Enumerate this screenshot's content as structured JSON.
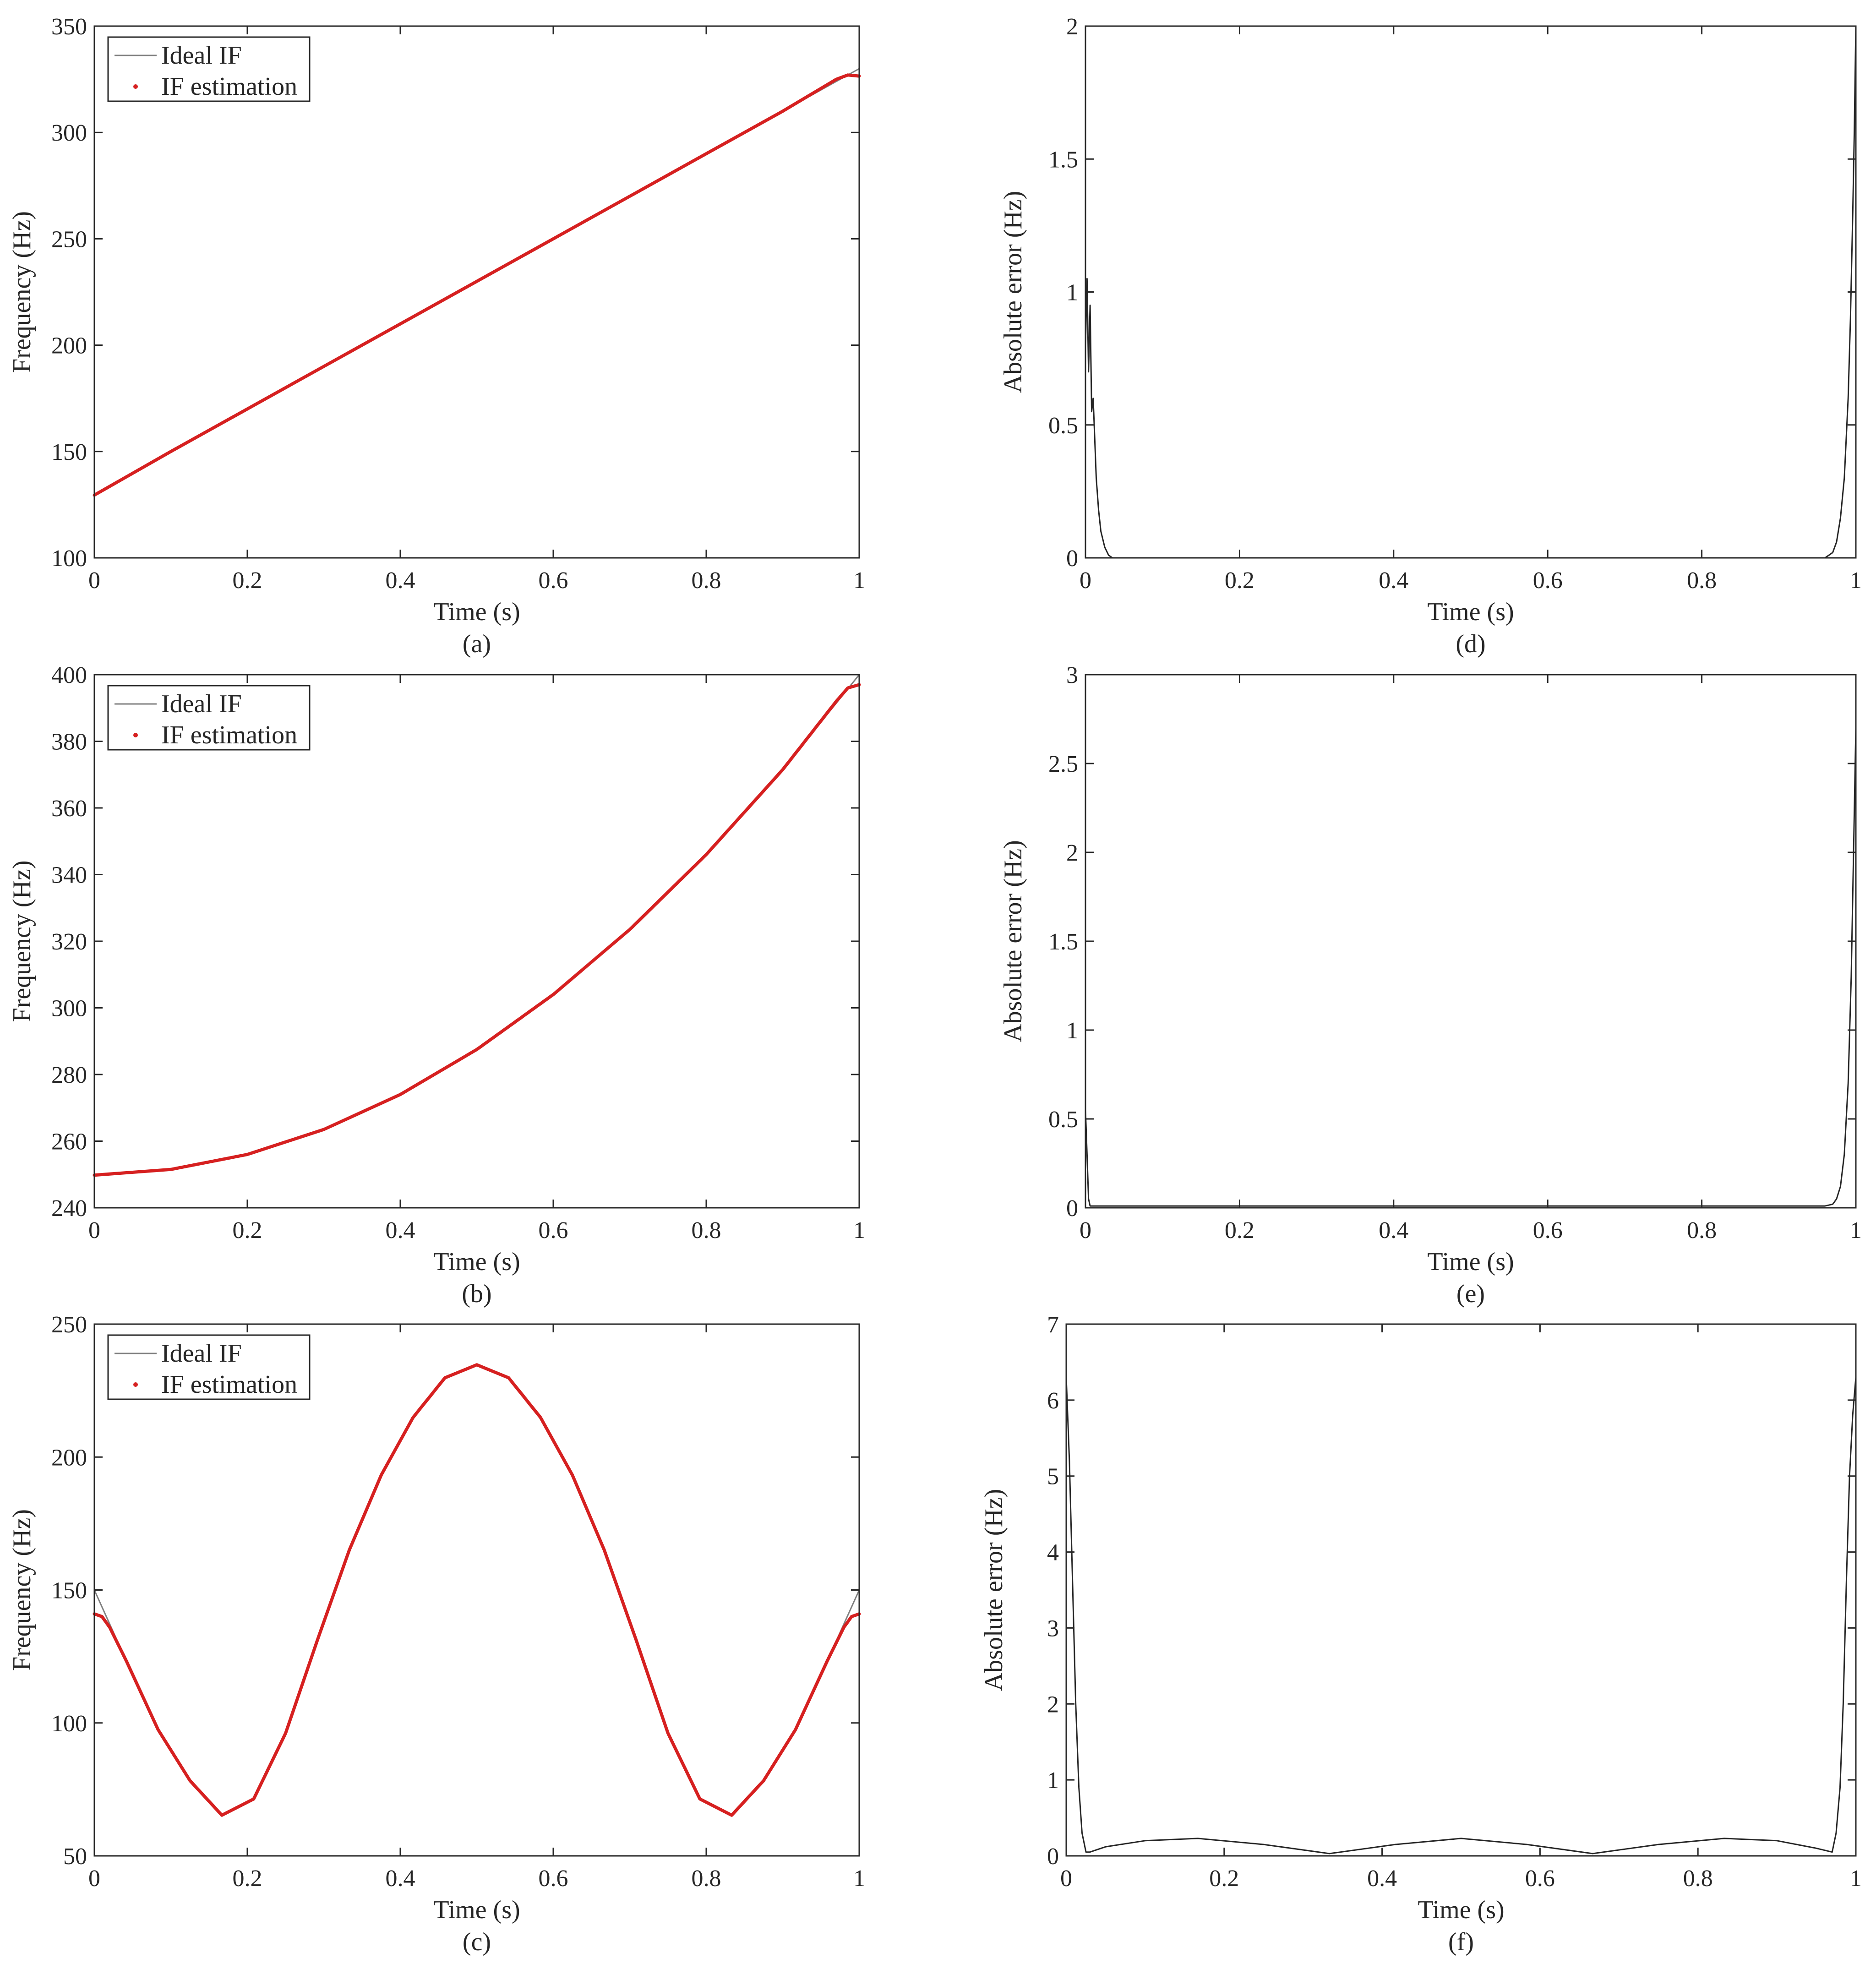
{
  "chart_data": [
    {
      "panel": "(a)",
      "type": "line",
      "xlabel": "Time (s)",
      "ylabel": "Frequency (Hz)",
      "xlim": [
        0,
        1
      ],
      "ylim": [
        100,
        350
      ],
      "xticks": [
        "0",
        "0.2",
        "0.4",
        "0.6",
        "0.8",
        "1"
      ],
      "yticks": [
        "100",
        "150",
        "200",
        "250",
        "300",
        "350"
      ],
      "grid": false,
      "legend": "top-left",
      "series": [
        {
          "name": "Ideal IF",
          "color": "#808080",
          "x": [
            0,
            0.1,
            0.2,
            0.3,
            0.4,
            0.5,
            0.6,
            0.7,
            0.8,
            0.9,
            1.0
          ],
          "values": [
            130,
            150,
            170,
            190,
            210,
            230,
            250,
            270,
            290,
            310,
            330
          ]
        },
        {
          "name": "IF estimation",
          "color": "#d62020",
          "x": [
            0,
            0.1,
            0.2,
            0.3,
            0.4,
            0.5,
            0.6,
            0.7,
            0.8,
            0.9,
            0.97,
            0.985,
            1.0
          ],
          "values": [
            129.5,
            150,
            170,
            190,
            210,
            230,
            250,
            270,
            290,
            310,
            325,
            327,
            326.5
          ]
        }
      ]
    },
    {
      "panel": "(b)",
      "type": "line",
      "xlabel": "Time (s)",
      "ylabel": "Frequency (Hz)",
      "xlim": [
        0,
        1
      ],
      "ylim": [
        240,
        400
      ],
      "xticks": [
        "0",
        "0.2",
        "0.4",
        "0.6",
        "0.8",
        "1"
      ],
      "yticks": [
        "240",
        "260",
        "280",
        "300",
        "320",
        "340",
        "360",
        "380",
        "400"
      ],
      "grid": false,
      "legend": "top-left",
      "series": [
        {
          "name": "Ideal IF",
          "color": "#808080",
          "x": [
            0,
            0.1,
            0.2,
            0.3,
            0.4,
            0.5,
            0.6,
            0.7,
            0.8,
            0.9,
            1.0
          ],
          "values": [
            250,
            251.5,
            256,
            263.5,
            274,
            287.5,
            304,
            323.5,
            346,
            371.5,
            400
          ]
        },
        {
          "name": "IF estimation",
          "color": "#d62020",
          "x": [
            0,
            0.1,
            0.2,
            0.3,
            0.4,
            0.5,
            0.6,
            0.7,
            0.8,
            0.9,
            0.97,
            0.985,
            1.0
          ],
          "values": [
            249.8,
            251.5,
            256,
            263.5,
            274,
            287.5,
            304,
            323.5,
            346,
            371.5,
            392,
            396,
            397
          ]
        }
      ]
    },
    {
      "panel": "(c)",
      "type": "line",
      "xlabel": "Time (s)",
      "ylabel": "Frequency (Hz)",
      "xlim": [
        0,
        1
      ],
      "ylim": [
        50,
        250
      ],
      "xticks": [
        "0",
        "0.2",
        "0.4",
        "0.6",
        "0.8",
        "1"
      ],
      "yticks": [
        "50",
        "100",
        "150",
        "200",
        "250"
      ],
      "grid": false,
      "legend": "top-left",
      "series": [
        {
          "name": "Ideal IF",
          "color": "#808080",
          "x": [
            0,
            0.0417,
            0.0833,
            0.125,
            0.1667,
            0.2083,
            0.25,
            0.2917,
            0.3333,
            0.375,
            0.4167,
            0.4583,
            0.5,
            0.5417,
            0.5833,
            0.625,
            0.6667,
            0.7083,
            0.75,
            0.7917,
            0.8333,
            0.875,
            0.9167,
            0.9583,
            1.0
          ],
          "values": [
            150,
            123.4,
            97.5,
            78.3,
            65,
            71.4,
            96.1,
            131.2,
            165,
            193.2,
            214.9,
            229.8,
            235,
            229.8,
            214.9,
            193.2,
            165,
            131.2,
            96.1,
            71.4,
            65,
            78.3,
            97.5,
            123.4,
            150
          ]
        },
        {
          "name": "IF estimation",
          "color": "#d62020",
          "x": [
            0,
            0.01,
            0.02,
            0.0417,
            0.0833,
            0.125,
            0.1667,
            0.2083,
            0.25,
            0.2917,
            0.3333,
            0.375,
            0.4167,
            0.4583,
            0.5,
            0.5417,
            0.5833,
            0.625,
            0.6667,
            0.7083,
            0.75,
            0.7917,
            0.8333,
            0.875,
            0.9167,
            0.9583,
            0.98,
            0.99,
            1.0
          ],
          "values": [
            141,
            140,
            136,
            123.4,
            97.5,
            78.3,
            65.3,
            71.4,
            96.1,
            131.2,
            165,
            193.2,
            214.9,
            229.8,
            234.7,
            229.8,
            214.9,
            193.2,
            165,
            131.2,
            96.1,
            71.4,
            65.3,
            78.3,
            97.5,
            123.4,
            136,
            140,
            141
          ]
        }
      ]
    },
    {
      "panel": "(d)",
      "type": "line",
      "xlabel": "Time (s)",
      "ylabel": "Absolute error (Hz)",
      "xlim": [
        0,
        1
      ],
      "ylim": [
        0,
        2
      ],
      "xticks": [
        "0",
        "0.2",
        "0.4",
        "0.6",
        "0.8",
        "1"
      ],
      "yticks": [
        "0",
        "0.5",
        "1",
        "1.5",
        "2"
      ],
      "grid": false,
      "series": [
        {
          "color": "#262626",
          "x": [
            0,
            0.002,
            0.004,
            0.006,
            0.008,
            0.01,
            0.012,
            0.014,
            0.017,
            0.02,
            0.025,
            0.03,
            0.035,
            0.2,
            0.5,
            0.8,
            0.96,
            0.97,
            0.975,
            0.98,
            0.985,
            0.99,
            0.993,
            0.996,
            0.998,
            1.0
          ],
          "values": [
            0.8,
            1.05,
            0.7,
            0.95,
            0.55,
            0.6,
            0.45,
            0.3,
            0.18,
            0.1,
            0.04,
            0.01,
            0,
            0,
            0,
            0,
            0,
            0.02,
            0.06,
            0.15,
            0.3,
            0.6,
            0.9,
            1.3,
            1.6,
            2.0
          ]
        }
      ]
    },
    {
      "panel": "(e)",
      "type": "line",
      "xlabel": "Time (s)",
      "ylabel": "Absolute error (Hz)",
      "xlim": [
        0,
        1
      ],
      "ylim": [
        0,
        3
      ],
      "xticks": [
        "0",
        "0.2",
        "0.4",
        "0.6",
        "0.8",
        "1"
      ],
      "yticks": [
        "0",
        "0.5",
        "1",
        "1.5",
        "2",
        "2.5",
        "3"
      ],
      "grid": false,
      "series": [
        {
          "color": "#262626",
          "x": [
            0,
            0.002,
            0.004,
            0.006,
            0.2,
            0.5,
            0.8,
            0.96,
            0.97,
            0.975,
            0.98,
            0.985,
            0.99,
            0.994,
            0.997,
            1.0
          ],
          "values": [
            0.55,
            0.3,
            0.05,
            0.01,
            0.01,
            0.01,
            0.01,
            0.01,
            0.02,
            0.05,
            0.12,
            0.3,
            0.7,
            1.3,
            2.0,
            2.7
          ]
        }
      ]
    },
    {
      "panel": "(f)",
      "type": "line",
      "xlabel": "Time (s)",
      "ylabel": "Absolute error (Hz)",
      "xlim": [
        0,
        1
      ],
      "ylim": [
        0,
        7
      ],
      "xticks": [
        "0",
        "0.2",
        "0.4",
        "0.6",
        "0.8",
        "1"
      ],
      "yticks": [
        "0",
        "1",
        "2",
        "3",
        "4",
        "5",
        "6",
        "7"
      ],
      "grid": false,
      "series": [
        {
          "color": "#262626",
          "x": [
            0,
            0.004,
            0.008,
            0.012,
            0.016,
            0.02,
            0.025,
            0.03,
            0.05,
            0.1,
            0.1667,
            0.25,
            0.3333,
            0.4167,
            0.5,
            0.5833,
            0.6667,
            0.75,
            0.8333,
            0.9,
            0.95,
            0.97,
            0.975,
            0.98,
            0.984,
            0.988,
            0.992,
            0.996,
            1.0
          ],
          "values": [
            6.3,
            5.2,
            3.6,
            2.0,
            0.9,
            0.3,
            0.05,
            0.05,
            0.12,
            0.2,
            0.23,
            0.15,
            0.03,
            0.15,
            0.23,
            0.15,
            0.03,
            0.15,
            0.23,
            0.2,
            0.1,
            0.05,
            0.3,
            0.9,
            2.0,
            3.6,
            5.0,
            5.8,
            6.3
          ]
        }
      ]
    }
  ]
}
